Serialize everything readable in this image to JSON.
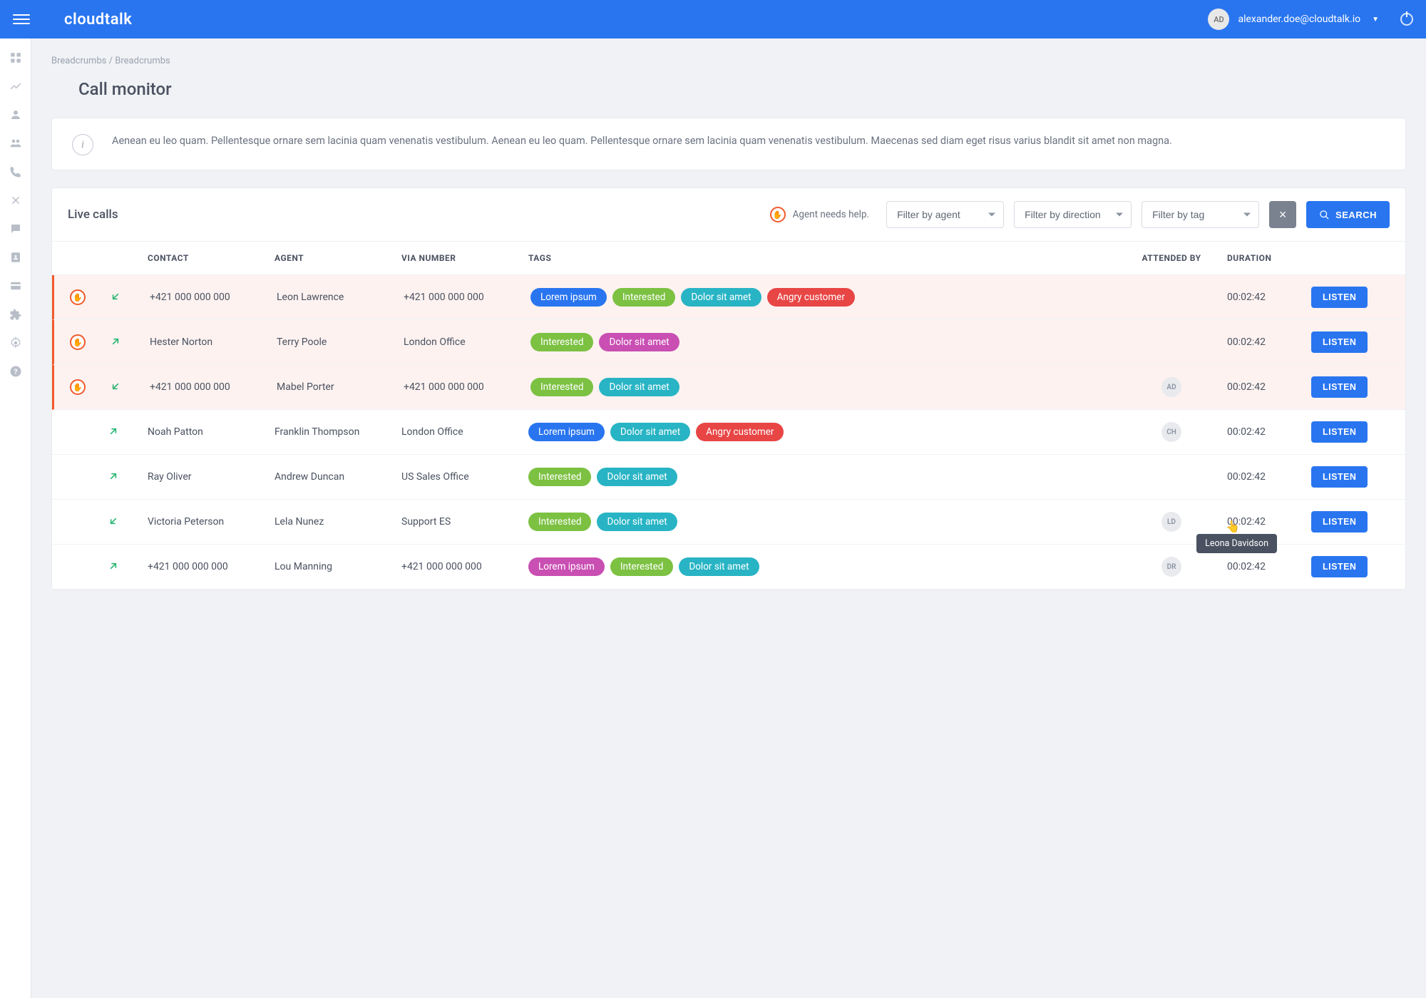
{
  "brand": "cloudtalk",
  "user": {
    "initials": "AD",
    "email": "alexander.doe@cloudtalk.io"
  },
  "breadcrumb": "Breadcrumbs / Breadcrumbs",
  "page_title": "Call monitor",
  "info_banner": "Aenean eu leo quam. Pellentesque ornare sem lacinia quam venenatis vestibulum. Aenean eu leo quam. Pellentesque ornare sem lacinia quam venenatis vestibulum. Maecenas sed diam eget risus varius blandit sit amet non magna.",
  "panel": {
    "title": "Live calls",
    "help_label": "Agent needs help.",
    "filters": {
      "agent": "Filter by agent",
      "direction": "Filter by direction",
      "tag": "Filter by tag"
    },
    "search_label": "SEARCH"
  },
  "columns": {
    "contact": "CONTACT",
    "agent": "AGENT",
    "via": "VIA NUMBER",
    "tags": "TAGS",
    "attended": "ATTENDED BY",
    "duration": "DURATION"
  },
  "tag_colors": {
    "blue": "#2975f0",
    "green": "#7cc142",
    "teal": "#28b4c4",
    "red": "#e84545",
    "magenta": "#c94fb3"
  },
  "listen_label": "LISTEN",
  "tooltip": "Leona Davidson",
  "rows": [
    {
      "alert": true,
      "direction": "in",
      "contact": "+421 000 000 000",
      "agent": "Leon Lawrence",
      "via": "+421 000 000 000",
      "tags": [
        {
          "label": "Lorem ipsum",
          "color": "blue"
        },
        {
          "label": "Interested",
          "color": "green"
        },
        {
          "label": "Dolor sit amet",
          "color": "teal"
        },
        {
          "label": "Angry customer",
          "color": "red"
        }
      ],
      "attended": "",
      "duration": "00:02:42"
    },
    {
      "alert": true,
      "direction": "out",
      "contact": "Hester Norton",
      "agent": "Terry Poole",
      "via": "London Office",
      "tags": [
        {
          "label": "Interested",
          "color": "green"
        },
        {
          "label": "Dolor sit amet",
          "color": "magenta"
        }
      ],
      "attended": "",
      "duration": "00:02:42"
    },
    {
      "alert": true,
      "direction": "in",
      "contact": "+421 000 000 000",
      "agent": "Mabel Porter",
      "via": "+421 000 000 000",
      "tags": [
        {
          "label": "Interested",
          "color": "green"
        },
        {
          "label": "Dolor sit amet",
          "color": "teal"
        }
      ],
      "attended": "AD",
      "duration": "00:02:42"
    },
    {
      "alert": false,
      "direction": "out",
      "contact": "Noah Patton",
      "agent": "Franklin Thompson",
      "via": "London Office",
      "tags": [
        {
          "label": "Lorem ipsum",
          "color": "blue"
        },
        {
          "label": "Dolor sit amet",
          "color": "teal"
        },
        {
          "label": "Angry customer",
          "color": "red"
        }
      ],
      "attended": "CH",
      "duration": "00:02:42"
    },
    {
      "alert": false,
      "direction": "out",
      "contact": "Ray Oliver",
      "agent": "Andrew Duncan",
      "via": "US Sales Office",
      "tags": [
        {
          "label": "Interested",
          "color": "green"
        },
        {
          "label": "Dolor sit amet",
          "color": "teal"
        }
      ],
      "attended": "",
      "duration": "00:02:42"
    },
    {
      "alert": false,
      "direction": "in",
      "contact": "Victoria Peterson",
      "agent": "Lela Nunez",
      "via": "Support ES",
      "tags": [
        {
          "label": "Interested",
          "color": "green"
        },
        {
          "label": "Dolor sit amet",
          "color": "teal"
        }
      ],
      "attended": "LD",
      "duration": "00:02:42",
      "tooltip": true
    },
    {
      "alert": false,
      "direction": "out",
      "contact": "+421 000 000 000",
      "agent": "Lou Manning",
      "via": "+421 000 000 000",
      "tags": [
        {
          "label": "Lorem ipsum",
          "color": "magenta"
        },
        {
          "label": "Interested",
          "color": "green"
        },
        {
          "label": "Dolor sit amet",
          "color": "teal"
        }
      ],
      "attended": "DR",
      "duration": "00:02:42"
    }
  ]
}
